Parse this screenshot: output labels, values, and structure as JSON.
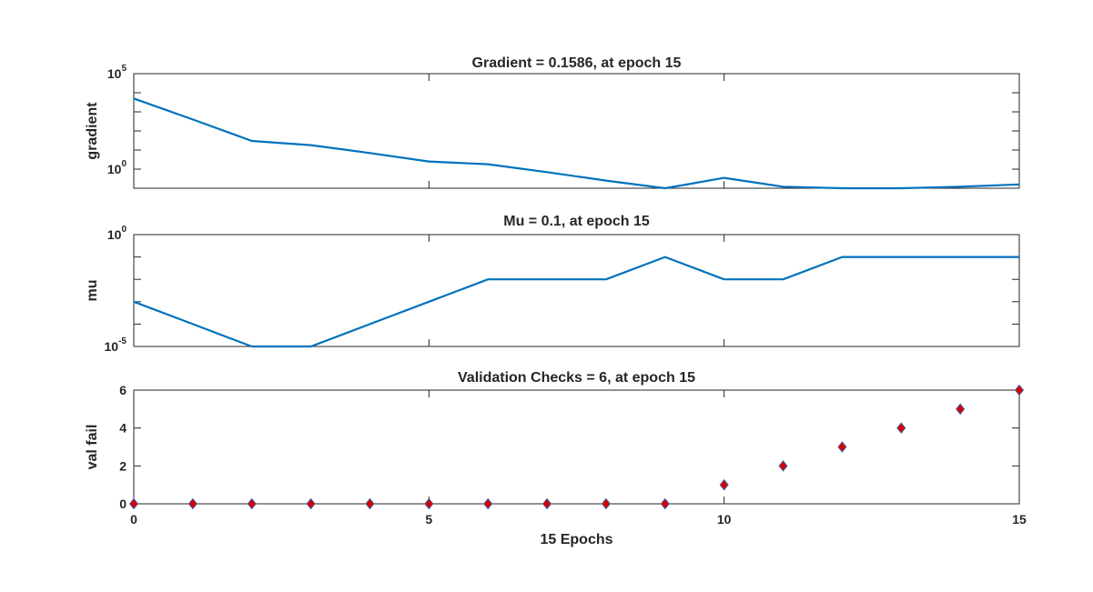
{
  "colors": {
    "line": "#0072BD",
    "marker_face": "#D90000",
    "marker_edge": "#3A5FA8",
    "axes": "#262626"
  },
  "chart_data": [
    {
      "type": "line",
      "title": "Gradient = 0.1586, at epoch 15",
      "ylabel": "gradient",
      "yscale": "log",
      "ylim_exp": [
        -1,
        5
      ],
      "yticks": [
        {
          "base": "10",
          "exp": "0",
          "value": 1
        },
        {
          "base": "10",
          "exp": "5",
          "value": 100000
        }
      ],
      "x": [
        0,
        1,
        2,
        3,
        4,
        5,
        6,
        7,
        8,
        9,
        10,
        11,
        12,
        13,
        14,
        15
      ],
      "values": [
        5000,
        400,
        30,
        18,
        7,
        2.5,
        1.8,
        0.7,
        0.25,
        0.1,
        0.35,
        0.12,
        0.08,
        0.1,
        0.12,
        0.1586
      ]
    },
    {
      "type": "line",
      "title": "Mu = 0.1, at epoch 15",
      "ylabel": "mu",
      "yscale": "log",
      "ylim_exp": [
        -5,
        0
      ],
      "yticks": [
        {
          "base": "10",
          "exp": "-5",
          "value": 1e-05
        },
        {
          "base": "10",
          "exp": "0",
          "value": 1
        }
      ],
      "x": [
        0,
        1,
        2,
        3,
        4,
        5,
        6,
        7,
        8,
        9,
        10,
        11,
        12,
        13,
        14,
        15
      ],
      "values": [
        0.001,
        0.0001,
        1e-05,
        1e-05,
        0.0001,
        0.001,
        0.01,
        0.01,
        0.01,
        0.1,
        0.01,
        0.01,
        0.1,
        0.1,
        0.1,
        0.1
      ]
    },
    {
      "type": "scatter",
      "title": "Validation Checks = 6, at epoch 15",
      "ylabel": "val fail",
      "xlabel": "15 Epochs",
      "ylim": [
        0,
        6
      ],
      "yticks": [
        0,
        2,
        4,
        6
      ],
      "x": [
        0,
        1,
        2,
        3,
        4,
        5,
        6,
        7,
        8,
        9,
        10,
        11,
        12,
        13,
        14,
        15
      ],
      "values": [
        0,
        0,
        0,
        0,
        0,
        0,
        0,
        0,
        0,
        0,
        1,
        2,
        3,
        4,
        5,
        6
      ]
    }
  ],
  "xaxis": {
    "xlim": [
      0,
      15
    ],
    "ticks": [
      0,
      5,
      10,
      15
    ]
  }
}
